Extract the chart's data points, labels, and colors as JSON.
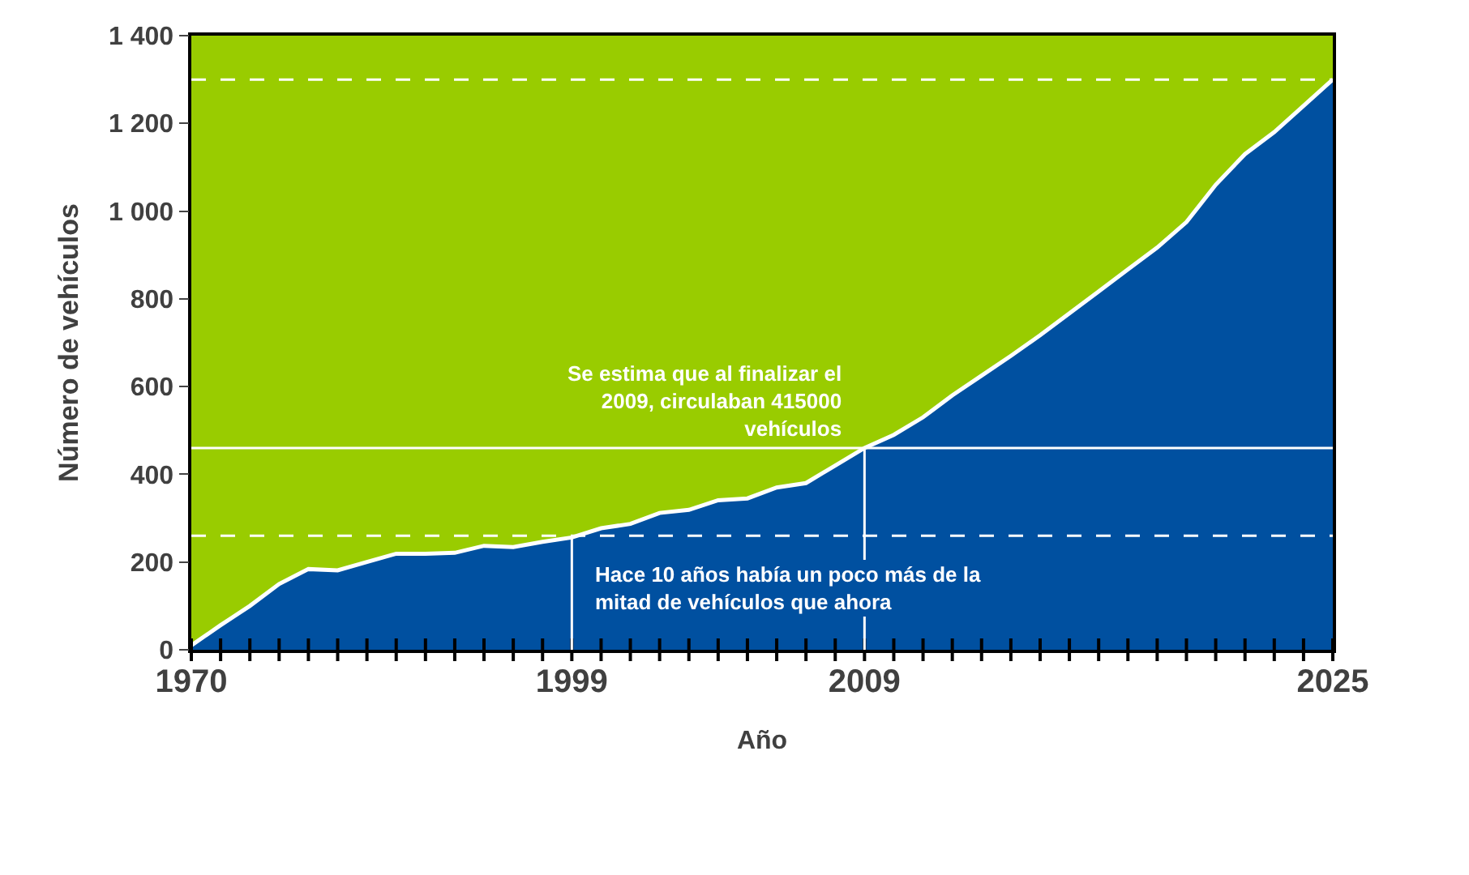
{
  "chart_data": {
    "type": "area",
    "xlabel": "Año",
    "ylabel": "Número de vehículos",
    "categories": [
      "1970",
      null,
      null,
      null,
      null,
      null,
      null,
      null,
      null,
      null,
      null,
      null,
      null,
      "1999",
      null,
      null,
      null,
      null,
      null,
      null,
      null,
      null,
      null,
      "2009",
      null,
      null,
      null,
      null,
      null,
      null,
      null,
      null,
      null,
      null,
      null,
      null,
      null,
      null,
      null,
      "2025"
    ],
    "series": [
      {
        "color": "#0050a0",
        "values": [
          10,
          56,
          100,
          150,
          184,
          181,
          200,
          219,
          219,
          221,
          237,
          234,
          246,
          256,
          277,
          287,
          312,
          319,
          341,
          345,
          370,
          380,
          420,
          460,
          490,
          530,
          580,
          625,
          670,
          717,
          767,
          817,
          867,
          917,
          975,
          1060,
          1130,
          1180,
          1240,
          1300
        ]
      }
    ],
    "ylim": [
      0,
      1400
    ],
    "yticks": [
      0,
      {
        "value": 200,
        "label": "200"
      },
      {
        "value": 400,
        "label": "400"
      },
      {
        "value": 600,
        "label": "600"
      },
      {
        "value": 800,
        "label": "800"
      },
      {
        "value": 1000,
        "label": "1 000"
      },
      {
        "value": 1200,
        "label": "1 200"
      },
      {
        "value": 1400,
        "label": "1 400"
      }
    ],
    "grid": false,
    "ref_lines": [
      {
        "axis": "y",
        "value": 1300,
        "color": "#ffffff",
        "line_style": "dashed"
      },
      {
        "axis": "y",
        "value": 460,
        "color": "#ffffff",
        "line_style": "solid"
      },
      {
        "axis": "y",
        "value": 260,
        "color": "#ffffff",
        "line_style": "dashed"
      },
      {
        "axis": "x",
        "value": "1999",
        "color": "#ffffff",
        "line_style": "solid"
      },
      {
        "axis": "x",
        "value": "2009",
        "color": "#ffffff",
        "line_style": "solid"
      }
    ],
    "annotations": [
      {
        "text": "Se estima que al finalizar el 2009, circulaban 415000 vehículos",
        "x": "2009",
        "y": 460
      },
      {
        "text": "Hace 10 años había un poco más de la mitad de vehículos que ahora",
        "x": "1999",
        "y": 260
      }
    ]
  }
}
